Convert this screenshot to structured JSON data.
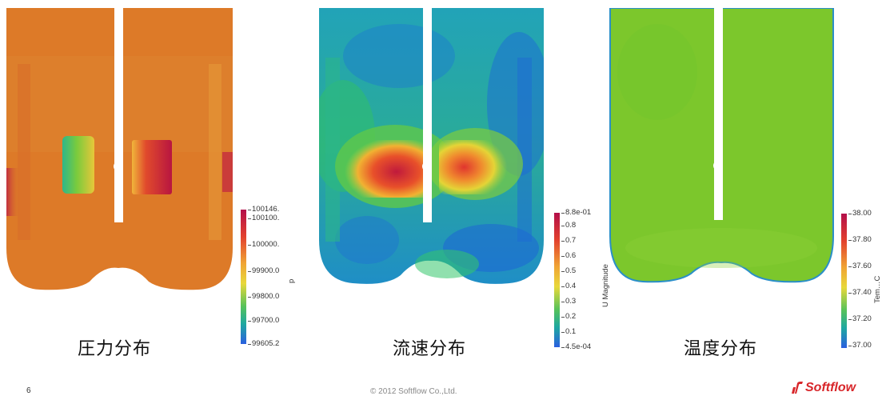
{
  "slide_number": "6",
  "copyright": "© 2012 Softflow Co.,Ltd.",
  "logo_text": "Softflow",
  "panels": [
    {
      "caption": "圧力分布",
      "colorbar_title": "p",
      "ticks": [
        "100146.",
        "100100.",
        "100000.",
        "99900.0",
        "99800.0",
        "99700.0",
        "99605.2"
      ],
      "colors": {
        "base": "#dd7a28",
        "hot": "#c41d3e",
        "cool": "#2fb786",
        "edge": "#e1a23c"
      }
    },
    {
      "caption": "流速分布",
      "colorbar_title": "U Magnitude",
      "ticks": [
        "8.8e-01",
        "0.8",
        "0.7",
        "0.6",
        "0.5",
        "0.4",
        "0.3",
        "0.2",
        "0.1",
        "4.5e-04"
      ],
      "colors": {
        "base": "#1d9bc9",
        "hot": "#c31d3c",
        "cool": "#1f5fd6",
        "mid": "#31c06a"
      }
    },
    {
      "caption": "温度分布",
      "colorbar_title": "Tem…C",
      "ticks": [
        "38.00",
        "37.80",
        "37.60",
        "37.40",
        "37.20",
        "37.00"
      ],
      "colors": {
        "base": "#7cc72c",
        "edge": "#2a8fc8"
      }
    }
  ]
}
